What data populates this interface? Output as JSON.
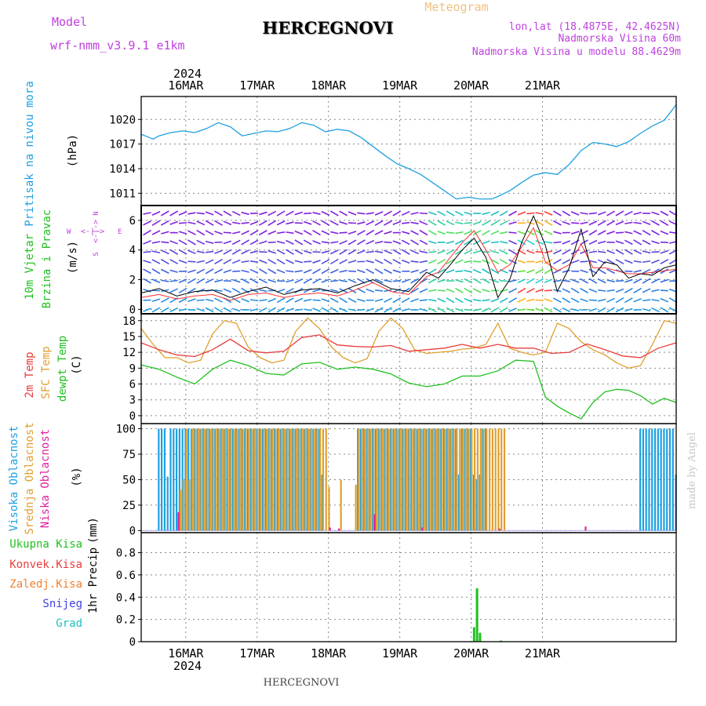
{
  "header": {
    "model_label": "Model",
    "model_name": "wrf-nmm_v3.9.1  e1km",
    "title": "HERCEGNOVI",
    "subtitle": "Meteogram",
    "lonlat": "lon,lat (18.4875E, 42.4625N)",
    "elevation": "Nadmorska Visina 60m",
    "model_elevation": "Nadmorska Visina u modelu 88.4629m",
    "footer": "HERCEGNOVI",
    "watermark": "made by Angel"
  },
  "colors": {
    "pressure": "#1ea0e0",
    "wind_label": "#20c020",
    "compass": "#c040e0",
    "temp2m": "#e83c3c",
    "sfc_temp": "#e0a030",
    "dewpt": "#20c020",
    "cloud_high": "#1ea0e0",
    "cloud_mid": "#e0a030",
    "cloud_low": "#e020a0",
    "precip_total": "#20c020",
    "precip_conv": "#e83c3c",
    "precip_frozen": "#f08030",
    "snow": "#4040e0",
    "hail": "#20c0c0",
    "model_label": "#c040e0",
    "grid": "#888888",
    "frame": "#000000"
  },
  "time_axis": {
    "year_top": "2024",
    "year_bottom": "2024",
    "days": [
      "16MAR",
      "17MAR",
      "18MAR",
      "19MAR",
      "20MAR",
      "21MAR"
    ]
  },
  "chart_data": [
    {
      "type": "line",
      "panel": "pressure",
      "ylabel": "Pritisak na nivou mora",
      "unit": "(hPa)",
      "yticks": [
        1011,
        1014,
        1017,
        1020
      ],
      "ylim": [
        1009.5,
        1022.8
      ],
      "grid": true,
      "series": [
        {
          "x": [
            0,
            2,
            4,
            6,
            10,
            14,
            18,
            22,
            26,
            30,
            34,
            38,
            42,
            46,
            50,
            54,
            58,
            62,
            66,
            70,
            74,
            78,
            82,
            86,
            90,
            94,
            98,
            102,
            106,
            110,
            114,
            118,
            120,
            124,
            128,
            132,
            136,
            140,
            144,
            148,
            152,
            156,
            160,
            164,
            168,
            172,
            176,
            180
          ],
          "values": [
            1018.2,
            1017.9,
            1017.6,
            1018.0,
            1018.4,
            1018.6,
            1018.4,
            1018.9,
            1019.6,
            1019.1,
            1018.0,
            1018.3,
            1018.6,
            1018.5,
            1018.9,
            1019.6,
            1019.3,
            1018.5,
            1018.8,
            1018.6,
            1017.8,
            1016.7,
            1015.6,
            1014.6,
            1014.0,
            1013.3,
            1012.3,
            1011.3,
            1010.3,
            1010.5,
            1010.3,
            1010.3,
            1010.6,
            1011.3,
            1012.3,
            1013.2,
            1013.5,
            1013.3,
            1014.5,
            1016.2,
            1017.2,
            1017.0,
            1016.7,
            1017.3,
            1018.3,
            1019.2,
            1019.9,
            1021.8
          ]
        }
      ]
    },
    {
      "type": "line",
      "panel": "wind",
      "ylabel": "10m Vjetar Brzina i Pravac",
      "unit": "(m/s)",
      "compass": {
        "n": "N",
        "w": "W",
        "e": "E",
        "s": "S"
      },
      "yticks": [
        0,
        2,
        4,
        6
      ],
      "ylim": [
        -0.3,
        7.0
      ],
      "grid": true,
      "series": [
        {
          "name": "speed",
          "x": [
            0,
            6,
            12,
            18,
            24,
            30,
            36,
            42,
            48,
            54,
            60,
            66,
            72,
            78,
            84,
            90,
            96,
            100,
            104,
            108,
            112,
            116,
            120,
            124,
            128,
            132,
            136,
            140,
            144,
            148,
            152,
            156,
            160,
            164,
            168,
            172,
            176,
            180
          ],
          "values": [
            1.1,
            1.4,
            0.9,
            1.2,
            1.3,
            0.8,
            1.2,
            1.5,
            1.0,
            1.3,
            1.4,
            1.1,
            1.6,
            2.0,
            1.4,
            1.2,
            2.5,
            2.1,
            3.0,
            4.0,
            4.8,
            3.5,
            0.8,
            2.0,
            4.5,
            6.3,
            4.3,
            1.2,
            2.8,
            5.4,
            2.2,
            3.2,
            3.0,
            2.1,
            2.4,
            2.3,
            2.8,
            3.0
          ]
        },
        {
          "name": "gust",
          "x": [
            0,
            6,
            12,
            18,
            24,
            30,
            36,
            42,
            48,
            54,
            60,
            66,
            72,
            78,
            84,
            90,
            96,
            100,
            104,
            108,
            112,
            116,
            120,
            124,
            128,
            132,
            136,
            140,
            144,
            148,
            152,
            156,
            160,
            164,
            168,
            172,
            176,
            180
          ],
          "values": [
            0.8,
            1.0,
            0.7,
            0.9,
            1.0,
            0.6,
            1.0,
            1.1,
            0.8,
            1.0,
            1.1,
            0.9,
            1.3,
            1.8,
            1.2,
            1.0,
            2.2,
            2.5,
            3.5,
            4.5,
            5.3,
            4.0,
            2.5,
            3.0,
            4.2,
            5.5,
            3.2,
            2.6,
            3.0,
            4.4,
            2.8,
            2.8,
            2.6,
            2.4,
            2.4,
            2.5,
            2.6,
            2.7
          ]
        }
      ]
    },
    {
      "type": "line",
      "panel": "temperature",
      "ylabel": "2m Temp / SFC Temp / dewpt Temp",
      "unit": "(C)",
      "yticks": [
        0,
        3,
        6,
        9,
        12,
        15,
        18
      ],
      "ylim": [
        -1.5,
        19.3
      ],
      "grid": true,
      "series": [
        {
          "name": "2m Temp",
          "x": [
            0,
            6,
            12,
            18,
            24,
            30,
            36,
            42,
            48,
            54,
            60,
            66,
            72,
            78,
            84,
            90,
            96,
            102,
            108,
            114,
            120,
            126,
            132,
            138,
            144,
            150,
            156,
            162,
            168,
            174,
            180
          ],
          "values": [
            13.8,
            12.5,
            11.5,
            11.2,
            12.5,
            14.5,
            12.3,
            11.9,
            12.2,
            14.8,
            15.3,
            13.4,
            13.1,
            13.0,
            13.3,
            12.2,
            12.5,
            12.8,
            13.5,
            12.8,
            13.5,
            12.8,
            12.8,
            11.8,
            12.0,
            13.6,
            12.5,
            11.3,
            11.0,
            12.8,
            13.8
          ]
        },
        {
          "name": "SFC Temp",
          "x": [
            0,
            4,
            8,
            12,
            16,
            20,
            24,
            28,
            32,
            36,
            40,
            44,
            48,
            52,
            56,
            60,
            64,
            68,
            72,
            76,
            80,
            84,
            88,
            92,
            96,
            100,
            104,
            108,
            112,
            116,
            120,
            124,
            128,
            132,
            136,
            140,
            144,
            148,
            152,
            156,
            160,
            164,
            168,
            172,
            176,
            180
          ],
          "values": [
            16.5,
            13.5,
            11.0,
            11.0,
            10.0,
            10.5,
            15.5,
            18.0,
            17.5,
            13.0,
            11.0,
            10.0,
            10.5,
            16.0,
            18.5,
            16.5,
            13.0,
            11.0,
            10.0,
            10.8,
            16.0,
            18.5,
            16.5,
            12.5,
            11.8,
            12.0,
            12.2,
            12.6,
            12.8,
            13.5,
            17.5,
            12.8,
            12.0,
            11.5,
            12.0,
            17.5,
            16.5,
            14.0,
            12.5,
            11.5,
            10.0,
            9.0,
            9.5,
            13.5,
            18.0,
            17.5
          ]
        },
        {
          "name": "dewpt Temp",
          "x": [
            0,
            6,
            12,
            18,
            24,
            30,
            36,
            42,
            48,
            54,
            60,
            66,
            72,
            78,
            84,
            90,
            96,
            102,
            108,
            114,
            120,
            126,
            132,
            136,
            140,
            144,
            148,
            152,
            156,
            160,
            164,
            168,
            172,
            176,
            180
          ],
          "values": [
            9.6,
            8.8,
            7.3,
            6.0,
            8.8,
            10.5,
            9.5,
            8.0,
            7.7,
            9.8,
            10.1,
            8.8,
            9.2,
            8.8,
            7.9,
            6.2,
            5.5,
            6.0,
            7.5,
            7.5,
            8.5,
            10.5,
            10.3,
            3.5,
            1.8,
            0.5,
            -0.6,
            2.5,
            4.5,
            5.0,
            4.8,
            3.8,
            2.2,
            3.3,
            2.5
          ]
        }
      ]
    },
    {
      "type": "bar",
      "panel": "cloud",
      "ylabel": "Visoka Oblacnost / Srednja Oblacnost / Niska Oblacnost",
      "unit": "(%)",
      "yticks": [
        0,
        25,
        50,
        75,
        100
      ],
      "ylim": [
        -2,
        105
      ],
      "grid": true,
      "series": [
        {
          "name": "Visoka Oblacnost",
          "x": [
            6,
            7,
            8,
            9,
            10,
            11,
            12,
            13,
            14,
            15,
            16,
            17,
            18,
            19,
            20,
            21,
            22,
            23,
            24,
            25,
            26,
            27,
            28,
            29,
            30,
            31,
            32,
            33,
            34,
            35,
            36,
            37,
            38,
            39,
            40,
            41,
            42,
            43,
            44,
            45,
            46,
            47,
            48,
            49,
            50,
            51,
            52,
            53,
            54,
            55,
            56,
            57,
            58,
            59,
            60,
            61,
            73,
            74,
            75,
            76,
            77,
            78,
            79,
            80,
            81,
            82,
            83,
            84,
            85,
            86,
            87,
            88,
            89,
            90,
            91,
            92,
            93,
            94,
            95,
            96,
            97,
            98,
            99,
            100,
            101,
            102,
            103,
            104,
            105,
            106,
            107,
            108,
            109,
            110,
            111,
            112,
            113,
            114,
            115,
            116,
            168,
            169,
            170,
            171,
            172,
            173,
            174,
            175,
            176,
            177,
            178,
            179,
            180
          ],
          "values": [
            100,
            100,
            100,
            53,
            100,
            100,
            100,
            100,
            100,
            100,
            100,
            100,
            100,
            100,
            100,
            100,
            100,
            100,
            100,
            100,
            100,
            100,
            100,
            100,
            100,
            100,
            100,
            100,
            100,
            100,
            100,
            100,
            100,
            100,
            100,
            100,
            100,
            100,
            100,
            100,
            100,
            100,
            100,
            100,
            100,
            100,
            100,
            100,
            100,
            100,
            100,
            100,
            100,
            100,
            100,
            55,
            100,
            100,
            100,
            100,
            100,
            100,
            100,
            100,
            100,
            100,
            100,
            100,
            100,
            100,
            100,
            100,
            100,
            100,
            100,
            100,
            100,
            100,
            100,
            100,
            100,
            100,
            100,
            100,
            100,
            100,
            100,
            100,
            100,
            100,
            55,
            100,
            100,
            100,
            100,
            55,
            50,
            55,
            100,
            100,
            100,
            100,
            100,
            100,
            100,
            100,
            100,
            100,
            100,
            100,
            100,
            100,
            55
          ]
        },
        {
          "name": "Srednja Oblacnost",
          "x": [
            13,
            14,
            15,
            16,
            17,
            18,
            19,
            20,
            21,
            22,
            23,
            24,
            25,
            26,
            27,
            28,
            29,
            30,
            31,
            32,
            33,
            34,
            35,
            36,
            37,
            38,
            39,
            40,
            41,
            42,
            43,
            44,
            45,
            46,
            47,
            48,
            49,
            50,
            51,
            52,
            53,
            54,
            55,
            56,
            57,
            58,
            59,
            60,
            61,
            62,
            63,
            67,
            72,
            73,
            74,
            75,
            76,
            77,
            78,
            79,
            80,
            81,
            82,
            83,
            84,
            85,
            86,
            87,
            88,
            89,
            90,
            91,
            92,
            93,
            94,
            95,
            96,
            97,
            98,
            99,
            100,
            101,
            102,
            103,
            104,
            105,
            106,
            107,
            108,
            109,
            110,
            111,
            112,
            113,
            114,
            115,
            116,
            117,
            118,
            119,
            120,
            121,
            122
          ],
          "values": [
            40,
            50,
            100,
            50,
            100,
            100,
            100,
            100,
            100,
            100,
            100,
            100,
            100,
            100,
            100,
            100,
            100,
            100,
            100,
            100,
            100,
            100,
            100,
            100,
            100,
            100,
            100,
            100,
            100,
            100,
            100,
            100,
            100,
            100,
            100,
            100,
            100,
            100,
            100,
            100,
            100,
            100,
            100,
            100,
            100,
            100,
            100,
            100,
            100,
            100,
            43,
            50,
            45,
            100,
            100,
            100,
            100,
            100,
            100,
            100,
            100,
            100,
            100,
            100,
            100,
            100,
            100,
            100,
            100,
            100,
            100,
            100,
            100,
            100,
            100,
            100,
            100,
            100,
            100,
            100,
            100,
            100,
            100,
            100,
            100,
            100,
            100,
            100,
            100,
            100,
            100,
            100,
            100,
            100,
            100,
            100,
            100,
            100,
            100,
            100,
            100,
            100,
            100
          ]
        },
        {
          "name": "Niska Oblacnost",
          "x": [
            12,
            63,
            66,
            78,
            94,
            120,
            149
          ],
          "values": [
            18,
            3,
            2,
            16,
            3,
            2,
            4
          ]
        }
      ]
    },
    {
      "type": "bar",
      "panel": "precip",
      "ylabel": "1hr Precip",
      "unit": "(mm)",
      "legend": [
        "Ukupna Kisa",
        "Konvek.Kisa",
        "Zaledj.Kisa",
        "Snijeg",
        "Grad"
      ],
      "yticks": [
        0,
        0.2,
        0.4,
        0.6,
        0.8
      ],
      "ylim": [
        0,
        0.98
      ],
      "grid": true,
      "series": [
        {
          "name": "Ukupna Kisa",
          "x": [
            112,
            113,
            114,
            121
          ],
          "values": [
            0.13,
            0.48,
            0.08,
            0.01
          ]
        }
      ]
    }
  ]
}
